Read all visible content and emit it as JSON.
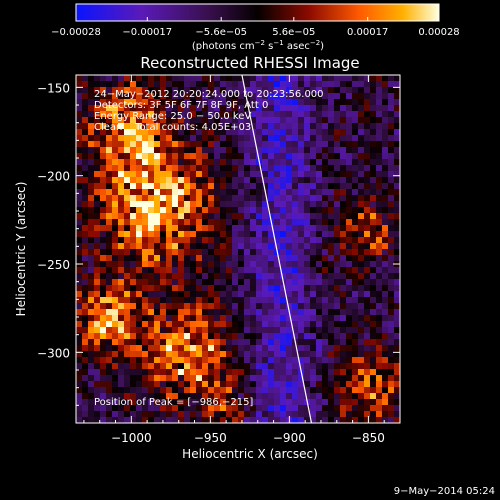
{
  "chart_data": {
    "type": "heatmap",
    "title": "Reconstructed RHESSI Image",
    "xlabel": "Heliocentric X (arcsec)",
    "ylabel": "Heliocentric Y (arcsec)",
    "xlim": [
      -1035,
      -830
    ],
    "ylim": [
      -340,
      -143
    ],
    "xticks": [
      -1000,
      -950,
      -900,
      -850
    ],
    "xtick_labels": [
      "−1000",
      "−950",
      "−900",
      "−850"
    ],
    "yticks": [
      -150,
      -200,
      -250,
      -300
    ],
    "ytick_labels": [
      "−150",
      "−200",
      "−250",
      "−300"
    ],
    "colorbar": {
      "min": -0.00028,
      "max": 0.00028,
      "ticks": [
        -0.00028,
        -0.00017,
        -5.6e-05,
        5.6e-05,
        0.00017,
        0.00028
      ],
      "tick_labels": [
        "−0.00028",
        "−0.00017",
        "−5.6e−05",
        "5.6e−05",
        "0.00017",
        "0.00028"
      ],
      "unit_parts": [
        "(photons cm",
        "−2",
        " s",
        "−1",
        " asec",
        "−2",
        ")"
      ]
    },
    "limb": {
      "x": [
        -930,
        -886
      ],
      "y": [
        -143,
        -340
      ]
    },
    "annotations": [
      "24−May−2012 20:20:24.000 to 20:23:56.000",
      "Detectors: 3F 5F 6F 7F 8F 9F, Att 0",
      "Energy Range: 25.0 − 50.0 keV",
      "Clean    Total counts: 4.05E+03"
    ],
    "peak_label": "Position of Peak = [−986,−215]",
    "peak": [
      -986,
      -215
    ]
  },
  "footer": {
    "timestamp": "9−May−2014 05:24"
  },
  "colors": {
    "background": "#000000",
    "text": "#ffffff"
  }
}
